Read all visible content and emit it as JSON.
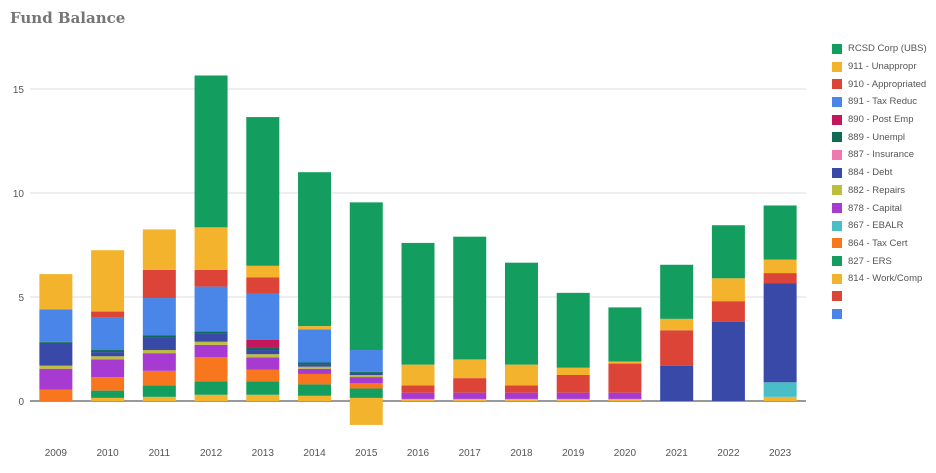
{
  "chart_data": {
    "type": "bar",
    "stacked": true,
    "title": "Fund Balance",
    "xlabel": "",
    "ylabel": "",
    "ylim": [
      -1.5,
      17.5
    ],
    "yticks": [
      0,
      5,
      10,
      15
    ],
    "grid": true,
    "legend_position": "right",
    "categories": [
      "2009",
      "2010",
      "2011",
      "2012",
      "2013",
      "2014",
      "2015",
      "2016",
      "2017",
      "2018",
      "2019",
      "2020",
      "2021",
      "2022",
      "2023"
    ],
    "series": [
      {
        "name": "814 - Work/Comp",
        "color": "#f4b32c",
        "values": [
          0,
          0.15,
          0.2,
          0.3,
          0.3,
          0.25,
          0.15,
          0.1,
          0.1,
          0.1,
          0.1,
          0.1,
          0,
          0,
          0.2
        ]
      },
      {
        "name": "827 - ERS",
        "color": "#139d5e",
        "values": [
          0,
          0.35,
          0.55,
          0.65,
          0.65,
          0.55,
          0.45,
          0,
          0,
          0,
          0,
          0,
          0,
          0,
          0
        ]
      },
      {
        "name": "864 - Tax Cert",
        "color": "#f8771e",
        "values": [
          0.55,
          0.65,
          0.7,
          1.15,
          0.55,
          0.5,
          0.25,
          0,
          0,
          0,
          0,
          0,
          0,
          0,
          0
        ]
      },
      {
        "name": "867 - EBALR",
        "color": "#49bec6",
        "values": [
          0,
          0,
          0,
          0,
          0,
          0,
          0,
          0,
          0,
          0,
          0,
          0,
          0,
          0,
          0.7
        ]
      },
      {
        "name": "878 - Capital",
        "color": "#a73ad1",
        "values": [
          1,
          0.85,
          0.85,
          0.6,
          0.6,
          0.25,
          0.3,
          0.3,
          0.3,
          0.3,
          0.3,
          0.3,
          0,
          0,
          0
        ]
      },
      {
        "name": "882 - Repairs",
        "color": "#bdbe3c",
        "values": [
          0.15,
          0.15,
          0.15,
          0.15,
          0.15,
          0.1,
          0.1,
          0,
          0,
          0,
          0,
          0,
          0,
          0,
          0
        ]
      },
      {
        "name": "884 - Debt",
        "color": "#3949a8",
        "values": [
          1.1,
          0.2,
          0.6,
          0.4,
          0.2,
          0.1,
          0.1,
          0,
          0,
          0,
          0,
          0,
          1.7,
          3.8,
          4.75
        ]
      },
      {
        "name": "887 - Insurance",
        "color": "#f078b0",
        "values": [
          0,
          0,
          0,
          0,
          0,
          0,
          0,
          0,
          0,
          0,
          0,
          0,
          0,
          0,
          0
        ]
      },
      {
        "name": "889 - Unempl",
        "color": "#0f6a56",
        "values": [
          0.05,
          0.1,
          0.1,
          0.1,
          0.1,
          0.1,
          0.05,
          0,
          0,
          0,
          0,
          0,
          0,
          0,
          0
        ]
      },
      {
        "name": "890 - Post Emp",
        "color": "#c2185b",
        "values": [
          0,
          0,
          0,
          0,
          0.4,
          0,
          0,
          0,
          0,
          0,
          0,
          0,
          0,
          0,
          0
        ]
      },
      {
        "name": "891 - Tax Reduc",
        "color": "#4a86e8",
        "values": [
          1.55,
          1.55,
          1.8,
          2.15,
          2.2,
          1.6,
          1.05,
          0,
          0,
          0,
          0,
          0,
          0,
          0,
          0
        ]
      },
      {
        "name": "910 - Appropriated",
        "color": "#dc4437",
        "values": [
          0,
          0.3,
          1.35,
          0.8,
          0.8,
          0,
          0,
          0.35,
          0.7,
          0.35,
          0.85,
          1.4,
          1.7,
          1,
          0.5
        ]
      },
      {
        "name": "911 - Unappropr",
        "color": "#f4b32c",
        "values": [
          1.7,
          2.95,
          1.95,
          2.05,
          0.55,
          0.15,
          -1.15,
          1,
          0.9,
          1,
          0.35,
          0.1,
          0.55,
          1.1,
          0.65
        ]
      },
      {
        "name": "RCSD Corp (UBS)",
        "color": "#139d5e",
        "values": [
          0,
          0,
          0,
          7.3,
          7.15,
          7.4,
          7.1,
          5.85,
          5.9,
          4.9,
          3.6,
          2.6,
          2.6,
          2.55,
          2.6
        ]
      }
    ],
    "legend_extra": [
      {
        "name": "",
        "color": "#dc4437"
      },
      {
        "name": "",
        "color": "#4a86e8"
      }
    ]
  }
}
